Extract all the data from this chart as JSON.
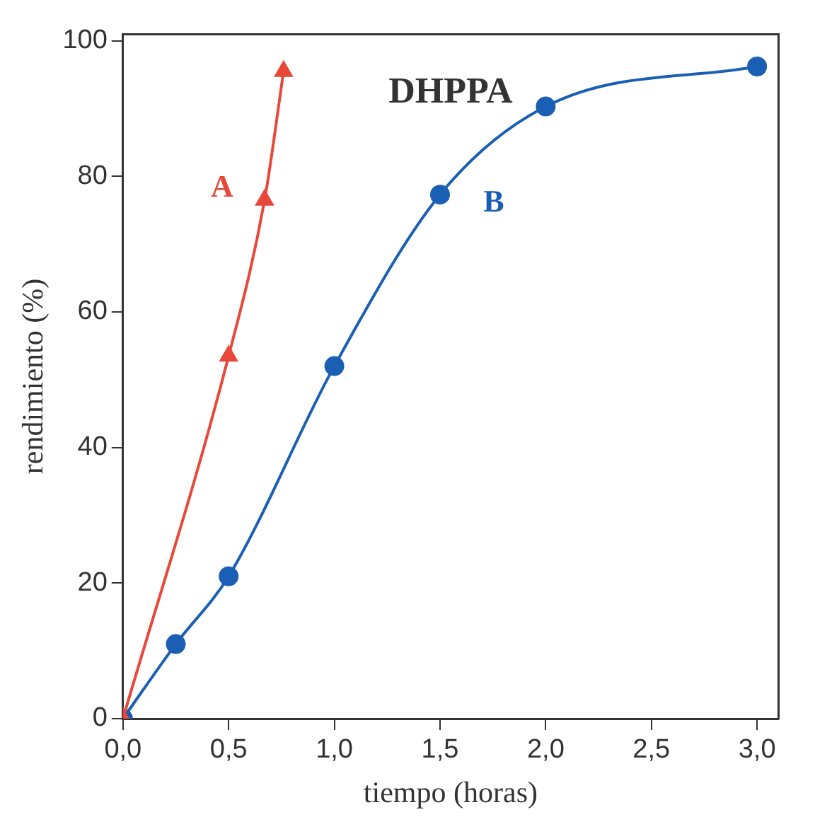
{
  "chart_data": {
    "type": "line",
    "title": "DHPPA",
    "xlabel": "tiempo (horas)",
    "ylabel": "rendimiento (%)",
    "xlim": [
      0,
      3.1
    ],
    "xticks": [
      {
        "value": 0,
        "label": "0,0"
      },
      {
        "value": 0.5,
        "label": "0,5"
      },
      {
        "value": 1,
        "label": "1,0"
      },
      {
        "value": 1.5,
        "label": "1,5"
      },
      {
        "value": 2,
        "label": "2,0"
      },
      {
        "value": 2.5,
        "label": "2,5"
      },
      {
        "value": 3,
        "label": "3,0"
      }
    ],
    "ylim": [
      0,
      101
    ],
    "yticks": [
      0,
      20,
      40,
      60,
      80,
      100
    ],
    "grid": false,
    "legend": false,
    "series": [
      {
        "name": "A",
        "color": "#e8483a",
        "marker": "triangle",
        "x": [
          0,
          0.5,
          0.67,
          0.76
        ],
        "values": [
          0,
          53.5,
          76.5,
          95.5
        ]
      },
      {
        "name": "B",
        "color": "#1a5fb4",
        "marker": "circle",
        "x": [
          0,
          0.25,
          0.5,
          1,
          1.5,
          2,
          3
        ],
        "values": [
          0,
          11,
          21,
          52,
          77.3,
          90.3,
          96.2
        ]
      }
    ]
  }
}
